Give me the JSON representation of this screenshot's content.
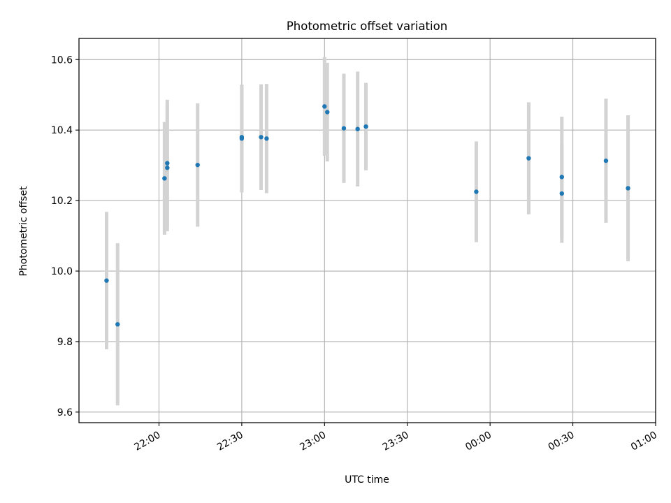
{
  "chart_data": {
    "type": "scatter",
    "title": "Photometric offset variation",
    "xlabel": "UTC time",
    "ylabel": "Photometric offset",
    "xlim": [
      "21:31",
      "01:00"
    ],
    "ylim": [
      9.57,
      10.66
    ],
    "grid": true,
    "x_ticks": [
      {
        "time": "22:00",
        "label": "22:00"
      },
      {
        "time": "22:30",
        "label": "22:30"
      },
      {
        "time": "23:00",
        "label": "23:00"
      },
      {
        "time": "23:30",
        "label": "23:30"
      },
      {
        "time": "00:00",
        "label": "00:00"
      },
      {
        "time": "00:30",
        "label": "00:30"
      },
      {
        "time": "01:00",
        "label": "01:00"
      }
    ],
    "y_ticks": [
      {
        "value": 9.6,
        "label": "9.6"
      },
      {
        "value": 9.8,
        "label": "9.8"
      },
      {
        "value": 10.0,
        "label": "10.0"
      },
      {
        "value": 10.2,
        "label": "10.2"
      },
      {
        "value": 10.4,
        "label": "10.4"
      },
      {
        "value": 10.6,
        "label": "10.6"
      }
    ],
    "colors": {
      "point": "#1f77b4",
      "errorbar": "#d3d3d3",
      "grid": "#b0b0b0"
    },
    "points": [
      {
        "time": "21:41",
        "y": 9.973,
        "err": 0.195
      },
      {
        "time": "21:45",
        "y": 9.849,
        "err": 0.23
      },
      {
        "time": "22:02",
        "y": 10.263,
        "err": 0.16
      },
      {
        "time": "22:03",
        "y": 10.293,
        "err": 0.18
      },
      {
        "time": "22:03",
        "y": 10.306,
        "err": 0.18
      },
      {
        "time": "22:14",
        "y": 10.301,
        "err": 0.175
      },
      {
        "time": "22:30",
        "y": 10.376,
        "err": 0.153
      },
      {
        "time": "22:30",
        "y": 10.38,
        "err": 0.148
      },
      {
        "time": "22:37",
        "y": 10.38,
        "err": 0.15
      },
      {
        "time": "22:39",
        "y": 10.376,
        "err": 0.155
      },
      {
        "time": "23:00",
        "y": 10.467,
        "err": 0.14
      },
      {
        "time": "23:01",
        "y": 10.451,
        "err": 0.14
      },
      {
        "time": "23:07",
        "y": 10.405,
        "err": 0.155
      },
      {
        "time": "23:12",
        "y": 10.403,
        "err": 0.163
      },
      {
        "time": "23:15",
        "y": 10.41,
        "err": 0.124
      },
      {
        "time": "23:55",
        "y": 10.225,
        "err": 0.143
      },
      {
        "time": "00:14",
        "y": 10.32,
        "err": 0.159
      },
      {
        "time": "00:26",
        "y": 10.22,
        "err": 0.14
      },
      {
        "time": "00:26",
        "y": 10.267,
        "err": 0.171
      },
      {
        "time": "00:42",
        "y": 10.313,
        "err": 0.176
      },
      {
        "time": "00:50",
        "y": 10.235,
        "err": 0.207
      }
    ]
  }
}
